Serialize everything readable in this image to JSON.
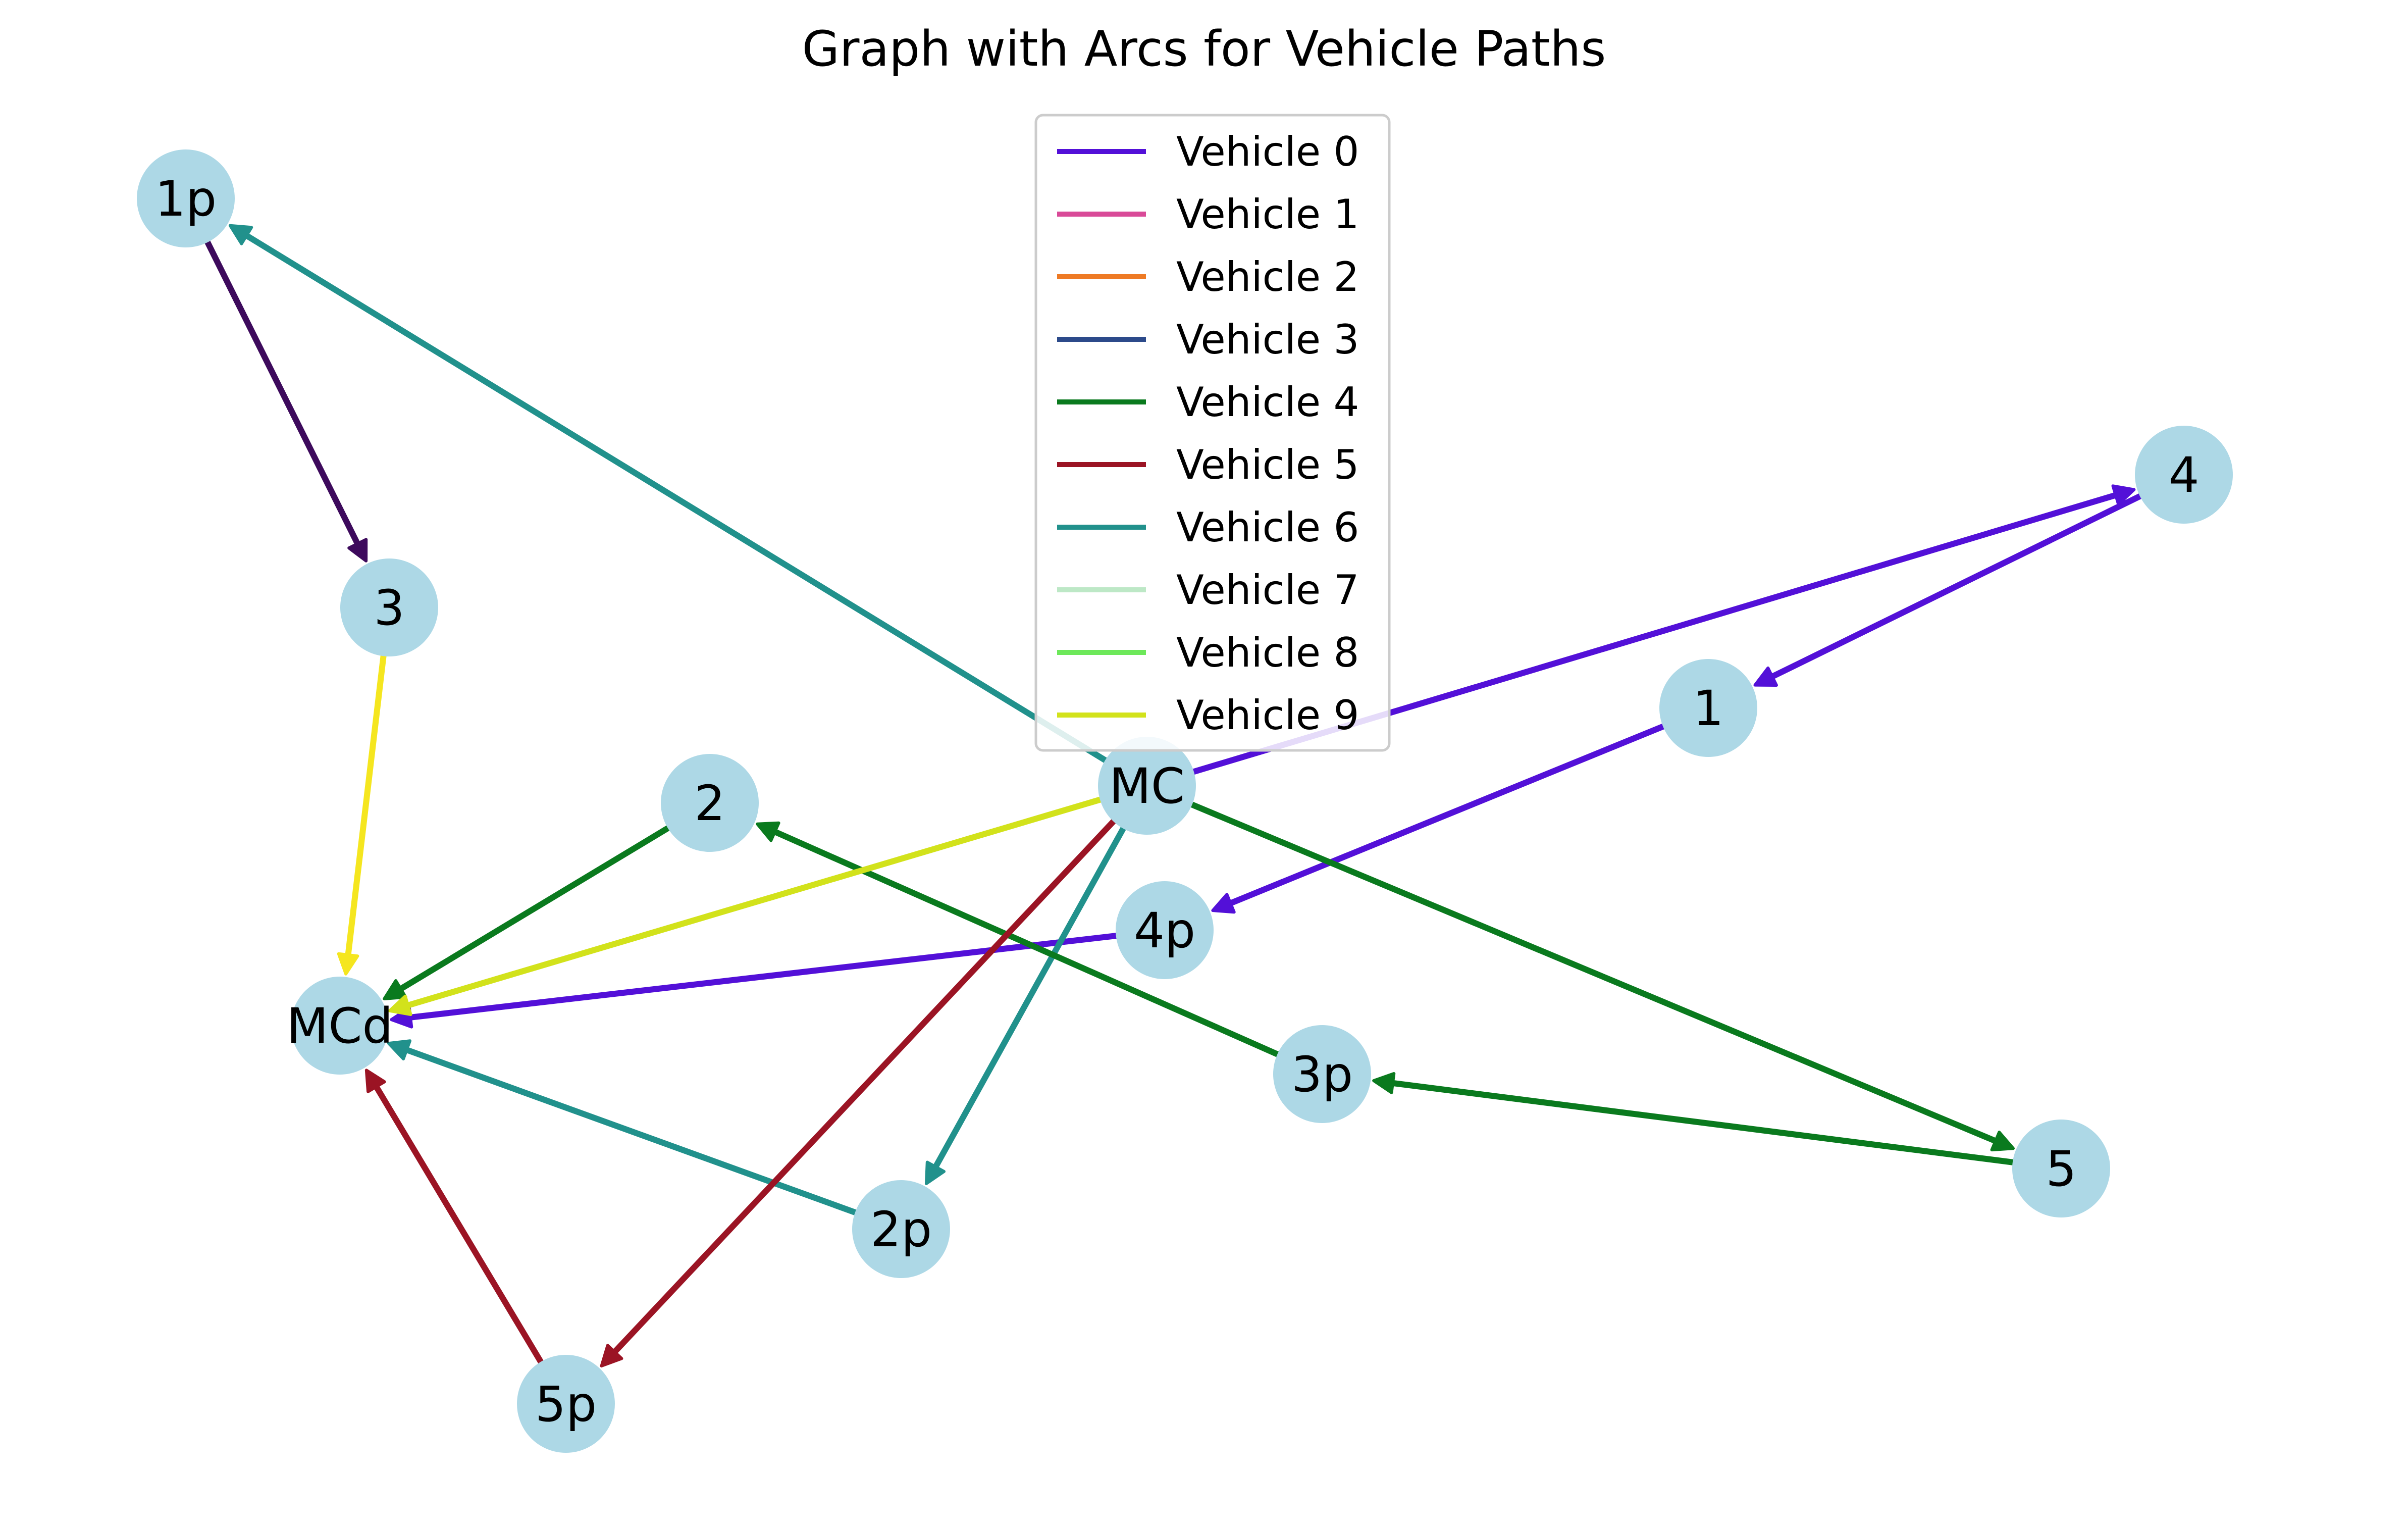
{
  "title": "Graph with Arcs for Vehicle Paths",
  "node_color": "#add8e6",
  "nodes": [
    {
      "id": "1p",
      "label": "1p"
    },
    {
      "id": "3",
      "label": "3"
    },
    {
      "id": "4",
      "label": "4"
    },
    {
      "id": "1",
      "label": "1"
    },
    {
      "id": "2",
      "label": "2"
    },
    {
      "id": "MC",
      "label": "MC"
    },
    {
      "id": "4p",
      "label": "4p"
    },
    {
      "id": "MCd",
      "label": "MCd"
    },
    {
      "id": "3p",
      "label": "3p"
    },
    {
      "id": "5",
      "label": "5"
    },
    {
      "id": "2p",
      "label": "2p"
    },
    {
      "id": "5p",
      "label": "5p"
    }
  ],
  "edges": [
    {
      "from": "1p",
      "to": "3",
      "color": "#3d0a5c"
    },
    {
      "from": "3",
      "to": "MCd",
      "color": "#f5e61f"
    },
    {
      "from": "MC",
      "to": "4",
      "color": "#5310d8"
    },
    {
      "from": "4",
      "to": "1",
      "color": "#5310d8"
    },
    {
      "from": "1",
      "to": "4p",
      "color": "#5310d8"
    },
    {
      "from": "4p",
      "to": "MCd",
      "color": "#5310d8"
    },
    {
      "from": "MC",
      "to": "1p",
      "color": "#21918c"
    },
    {
      "from": "MC",
      "to": "2p",
      "color": "#21918c"
    },
    {
      "from": "2p",
      "to": "MCd",
      "color": "#21918c"
    },
    {
      "from": "MC",
      "to": "5",
      "color": "#0a7a1e"
    },
    {
      "from": "5",
      "to": "3p",
      "color": "#0a7a1e"
    },
    {
      "from": "3p",
      "to": "2",
      "color": "#0a7a1e"
    },
    {
      "from": "2",
      "to": "MCd",
      "color": "#0a7a1e"
    },
    {
      "from": "MC",
      "to": "5p",
      "color": "#9b1424"
    },
    {
      "from": "5p",
      "to": "MCd",
      "color": "#9b1424"
    },
    {
      "from": "MC",
      "to": "MCd",
      "color": "#d2e21b"
    }
  ],
  "legend": [
    {
      "label": "Vehicle 0",
      "color": "#5310d8"
    },
    {
      "label": "Vehicle 1",
      "color": "#d94a98"
    },
    {
      "label": "Vehicle 2",
      "color": "#ee7a24"
    },
    {
      "label": "Vehicle 3",
      "color": "#2c4a8a"
    },
    {
      "label": "Vehicle 4",
      "color": "#0a7a1e"
    },
    {
      "label": "Vehicle 5",
      "color": "#9b1424"
    },
    {
      "label": "Vehicle 6",
      "color": "#21918c"
    },
    {
      "label": "Vehicle 7",
      "color": "#bde8c6"
    },
    {
      "label": "Vehicle 8",
      "color": "#6de85a"
    },
    {
      "label": "Vehicle 9",
      "color": "#d2e21b"
    }
  ]
}
